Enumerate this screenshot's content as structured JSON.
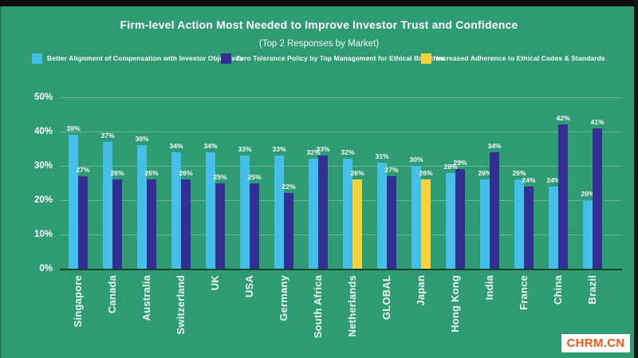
{
  "title": "Firm-level Action Most Needed to Improve Investor Trust and Confidence",
  "subtitle": "(Top 2 Responses by Market)",
  "legend": [
    {
      "label": "Better Alignment of Compensation with Investor Objectives",
      "color": "#45bee8"
    },
    {
      "label": "Zero Tolerance Policy by Top Management for Ethical Breaches",
      "color": "#332e91"
    },
    {
      "label": "Increased Adherence to Ethical Codes & Standards",
      "color": "#f3d43e"
    }
  ],
  "watermark": "CHRM.CN",
  "colors": {
    "background": "#2e9b72",
    "bar_light_blue": "#45bee8",
    "bar_navy": "#332e91",
    "bar_yellow": "#f3d43e",
    "text": "#ffffff",
    "axis_line": "#17402f",
    "gridline": "rgba(255,255,255,0.28)",
    "watermark_text": "#ee5a0f",
    "watermark_bg": "#ffffff",
    "top_bar": "#0e0e0e"
  },
  "chart_data": {
    "type": "bar",
    "title": "Firm-level Action Most Needed to Improve Investor Trust and Confidence",
    "subtitle": "(Top 2 Responses by Market)",
    "xlabel": "",
    "ylabel": "",
    "ylim": [
      0,
      50
    ],
    "yticks": [
      "0%",
      "10%",
      "20%",
      "30%",
      "40%",
      "50%"
    ],
    "grid": true,
    "legend_position": "top",
    "value_labels": true,
    "categories": [
      "Singapore",
      "Canada",
      "Australia",
      "Switzerland",
      "UK",
      "USA",
      "Germany",
      "South Africa",
      "Netherlands",
      "GLOBAL",
      "Japan",
      "Hong Kong",
      "India",
      "France",
      "China",
      "Brazil"
    ],
    "series": [
      {
        "name": "Better Alignment of Compensation with Investor Objectives",
        "color": "#45bee8",
        "values": [
          39,
          37,
          36,
          34,
          34,
          33,
          33,
          32,
          32,
          31,
          30,
          28,
          26,
          26,
          24,
          20
        ]
      },
      {
        "name": "Zero Tolerance Policy by Top Management for Ethical Breaches",
        "color": "#332e91",
        "values": [
          27,
          26,
          26,
          26,
          25,
          25,
          22,
          33,
          null,
          27,
          null,
          29,
          34,
          24,
          42,
          41
        ]
      },
      {
        "name": "Increased Adherence to Ethical Codes & Standards",
        "color": "#f3d43e",
        "values": [
          null,
          null,
          null,
          null,
          null,
          null,
          null,
          null,
          26,
          null,
          26,
          null,
          null,
          null,
          null,
          null
        ]
      }
    ]
  }
}
